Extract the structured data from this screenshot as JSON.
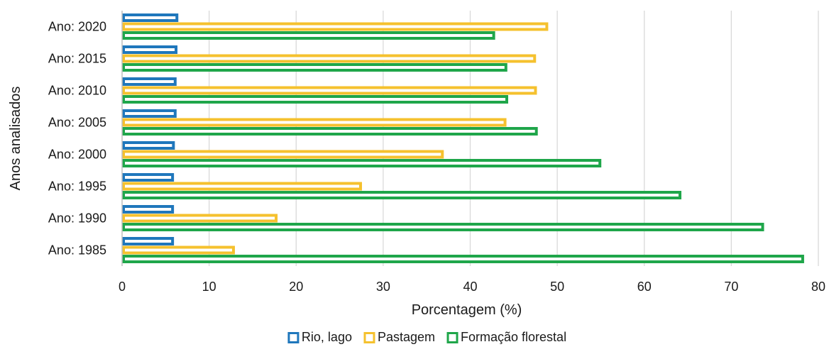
{
  "chart_data": {
    "type": "bar",
    "orientation": "horizontal",
    "title": "",
    "xlabel": "Porcentagem (%)",
    "ylabel": "Anos analisados",
    "xlim": [
      0,
      80
    ],
    "xticks": [
      0,
      10,
      20,
      30,
      40,
      50,
      60,
      70,
      80
    ],
    "grid": "vertical",
    "legend_position": "bottom",
    "categories": [
      "Ano: 2020",
      "Ano: 2015",
      "Ano: 2010",
      "Ano: 2005",
      "Ano: 2000",
      "Ano: 1995",
      "Ano: 1990",
      "Ano: 1985"
    ],
    "series": [
      {
        "name": "Rio, lago",
        "color": "#1f77bc",
        "values": [
          6.3,
          6.2,
          6.1,
          6.1,
          5.9,
          5.8,
          5.8,
          5.8
        ]
      },
      {
        "name": "Pastagem",
        "color": "#f5c12e",
        "values": [
          48.8,
          47.4,
          47.5,
          44.0,
          36.8,
          27.4,
          17.7,
          12.8
        ]
      },
      {
        "name": "Formação florestal",
        "color": "#1fa64a",
        "values": [
          42.7,
          44.1,
          44.2,
          47.6,
          54.9,
          64.1,
          73.6,
          78.2
        ]
      }
    ]
  }
}
